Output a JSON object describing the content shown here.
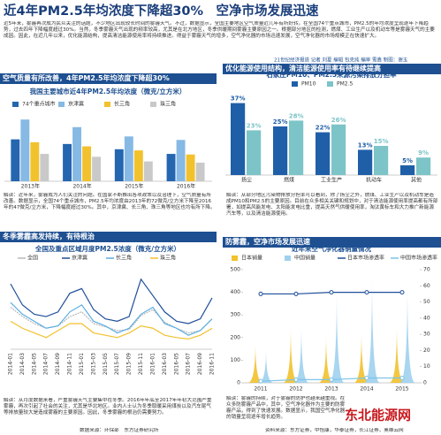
{
  "header": {
    "title": "近4年PM2.5年均浓度下降超30%　空净市场发展迅速",
    "intro": "近5年来，雾霾再次成为民众关注的话题，不少地区出现较长时间的雾霾天气。不过，数据显示，全国主要地区空气质量近几年有所好转。在全国74个重点城市，PM2.5的年均浓度呈现逐年下降趋势，过去四年下降幅度超过30%。当然，冬季雾霾天气出现的频率较高，尤其是在北方地区，冬季供暖期间雾霾主要原因之一。根据部分地区的检测，燃煤、工业生产以及机动车等是雾霾天气的主要成因。因此，在近几年以来，优化能源结构，提高清洁能源使用率将持续推进。得益于雾霾天气的增多，空气净化器的市场迅速发展，空气净化器的市场规模正在快速扩大。",
    "credit": "21世纪经济报道 记者 刘夏 编辑 包克纯 编审 雪鑫 制图：谢玉"
  },
  "sections": [
    "空气质量有所改善，4年PM2.5年均浓度下降超30%",
    "优化能源使用结构，清洁能源使用率有待继续提高",
    "冬季雾霾高发持续，有待根治",
    "防雾霾，空净市场发展迅速"
  ],
  "notes": [
    "解读：近年来，雾霾成为人们关注的问题。在国家不断推出各项政策以及治理下，空气质量有所改善。数据显示，全国74个重点城市，PM2.5年均浓度由2013年的72微克/立方米下降至2016年的47微克/立方米，下降幅度超过30%。其中，京津冀、长三角、珠三角等地区也均有所下降。",
    "解读：从部分地区污染物排放分担率可以看到，除了扬尘之外，燃煤、工业生产以及机动车是造成PM10和PM2.5的主要原因。目前在众多相关关键和规划中，对于清洁能源使用率提高都有所部署，如提高风能发电、太阳能发电比重，提高天然气供暖使用率，淘汰黄标车和大力推广新能源汽车等，以及清洁能源使用。",
    "解读：从月度数据来看，严重雾霾天气主要集中在冬季。2016年年底至2017年年初大范围严重雾霾，再次引起了社会的关注，尤其是华北地区。业内人士认为冬季取暖采用煤炭以及汽车尾气等排放量较大是造成雾霾的主要原因。因此，冬季雾霾的根治仍需要努力。",
    "解读：雾霾的持续，对于雾霾的防护也越来越重视。在众多防雾霾产品中，其中，空气净化器作为主要的防雾霾产品，得到了快速发展。数据显示，我国空气净化器的销量呈现逐年增长趋势。"
  ],
  "sources": [
    "数据来源：环保部　东方证券研究所",
    "资料来源：东方证券，中怡康，华泰证券，长江证券，奥维云网"
  ],
  "watermark": "东北能源网",
  "chart_data": [
    {
      "type": "bar",
      "title": "我国主要城市近4年PM2.5年均浓度（微克/立方米）",
      "categories": [
        "2013年",
        "2014年",
        "2015年",
        "2016年"
      ],
      "series": [
        {
          "name": "74个重点城市",
          "color": "#2466b0",
          "values": [
            72,
            64,
            55,
            47
          ]
        },
        {
          "name": "京津冀",
          "color": "#86b9e4",
          "values": [
            106,
            93,
            77,
            71
          ]
        },
        {
          "name": "长三角",
          "color": "#f2c12e",
          "values": [
            67,
            60,
            53,
            46
          ]
        },
        {
          "name": "珠三角",
          "color": "#c9c9c9",
          "values": [
            47,
            42,
            34,
            32
          ]
        }
      ],
      "ylim": [
        0,
        120
      ]
    },
    {
      "type": "bar",
      "title": "石家庄PM10、PM2.5来源污染排放分担率",
      "categories": [
        "扬尘",
        "燃煤",
        "工业生产",
        "机动车",
        "其他"
      ],
      "series": [
        {
          "name": "PM10",
          "color": "#1f5fa8",
          "values": [
            37,
            25,
            22,
            13,
            5
          ],
          "value_labels": [
            "37%",
            "25%",
            "22%",
            "13%",
            "5%"
          ]
        },
        {
          "name": "PM2.5",
          "color": "#7cc4c8",
          "values": [
            23,
            28,
            26,
            15,
            9
          ],
          "value_labels": [
            "23%",
            "28%",
            "26%",
            "15%",
            "9%"
          ]
        }
      ],
      "ylim": [
        0,
        40
      ]
    },
    {
      "type": "line",
      "title": "全国及重点区域月度PM2.5浓度（微克/立方米）",
      "categories": [
        "2014-01",
        "2014-03",
        "2014-05",
        "2014-07",
        "2014-09",
        "2014-11",
        "2015-01",
        "2015-03",
        "2015-05",
        "2015-07",
        "2015-09",
        "2015-11",
        "2016-01",
        "2016-03",
        "2016-05",
        "2016-07",
        "2016-09",
        "2016-11"
      ],
      "series": [
        {
          "name": "全国",
          "color": "#b8b8b8",
          "values": [
            90,
            70,
            55,
            45,
            50,
            70,
            80,
            55,
            48,
            40,
            42,
            72,
            85,
            58,
            45,
            35,
            40,
            65
          ]
        },
        {
          "name": "京津冀",
          "color": "#1f4e99",
          "values": [
            140,
            95,
            75,
            70,
            80,
            120,
            130,
            85,
            65,
            60,
            70,
            150,
            115,
            80,
            60,
            55,
            65,
            110
          ]
        },
        {
          "name": "长三角",
          "color": "#5aaee0",
          "values": [
            100,
            75,
            60,
            45,
            50,
            80,
            95,
            60,
            50,
            35,
            45,
            75,
            90,
            55,
            45,
            30,
            40,
            65
          ]
        },
        {
          "name": "珠三角",
          "color": "#f2c12e",
          "values": [
            60,
            45,
            35,
            25,
            40,
            55,
            55,
            35,
            30,
            25,
            35,
            50,
            45,
            30,
            25,
            22,
            30,
            45
          ]
        }
      ],
      "ylim": [
        0,
        180
      ]
    },
    {
      "type": "bar-line",
      "title": "近年来空气净化器销量情况",
      "categories": [
        "2011",
        "2012",
        "2013",
        "2014",
        "2015"
      ],
      "series": [
        {
          "name": "日本销量",
          "color": "#f2c12e",
          "type": "bar",
          "values": [
            180,
            250,
            215,
            230,
            260
          ]
        },
        {
          "name": "中国销量",
          "color": "#9fd0ee",
          "type": "bar",
          "values": [
            150,
            260,
            420,
            480,
            440
          ]
        },
        {
          "name": "日本市场渗透率",
          "color": "#1f4e99",
          "type": "line",
          "axis": "y2",
          "values": [
            55,
            55,
            56,
            56,
            56
          ]
        },
        {
          "name": "中国市场渗透率",
          "color": "#7cc4e8",
          "type": "line",
          "axis": "y2",
          "values": [
            1,
            2,
            2,
            3,
            3
          ]
        }
      ],
      "ylim": [
        0,
        500
      ],
      "yticks": [
        0,
        100,
        200,
        300,
        400,
        500
      ],
      "y2lim": [
        0,
        70
      ],
      "y2ticks": [
        0,
        10,
        20,
        30,
        40,
        50,
        60,
        70
      ]
    }
  ]
}
